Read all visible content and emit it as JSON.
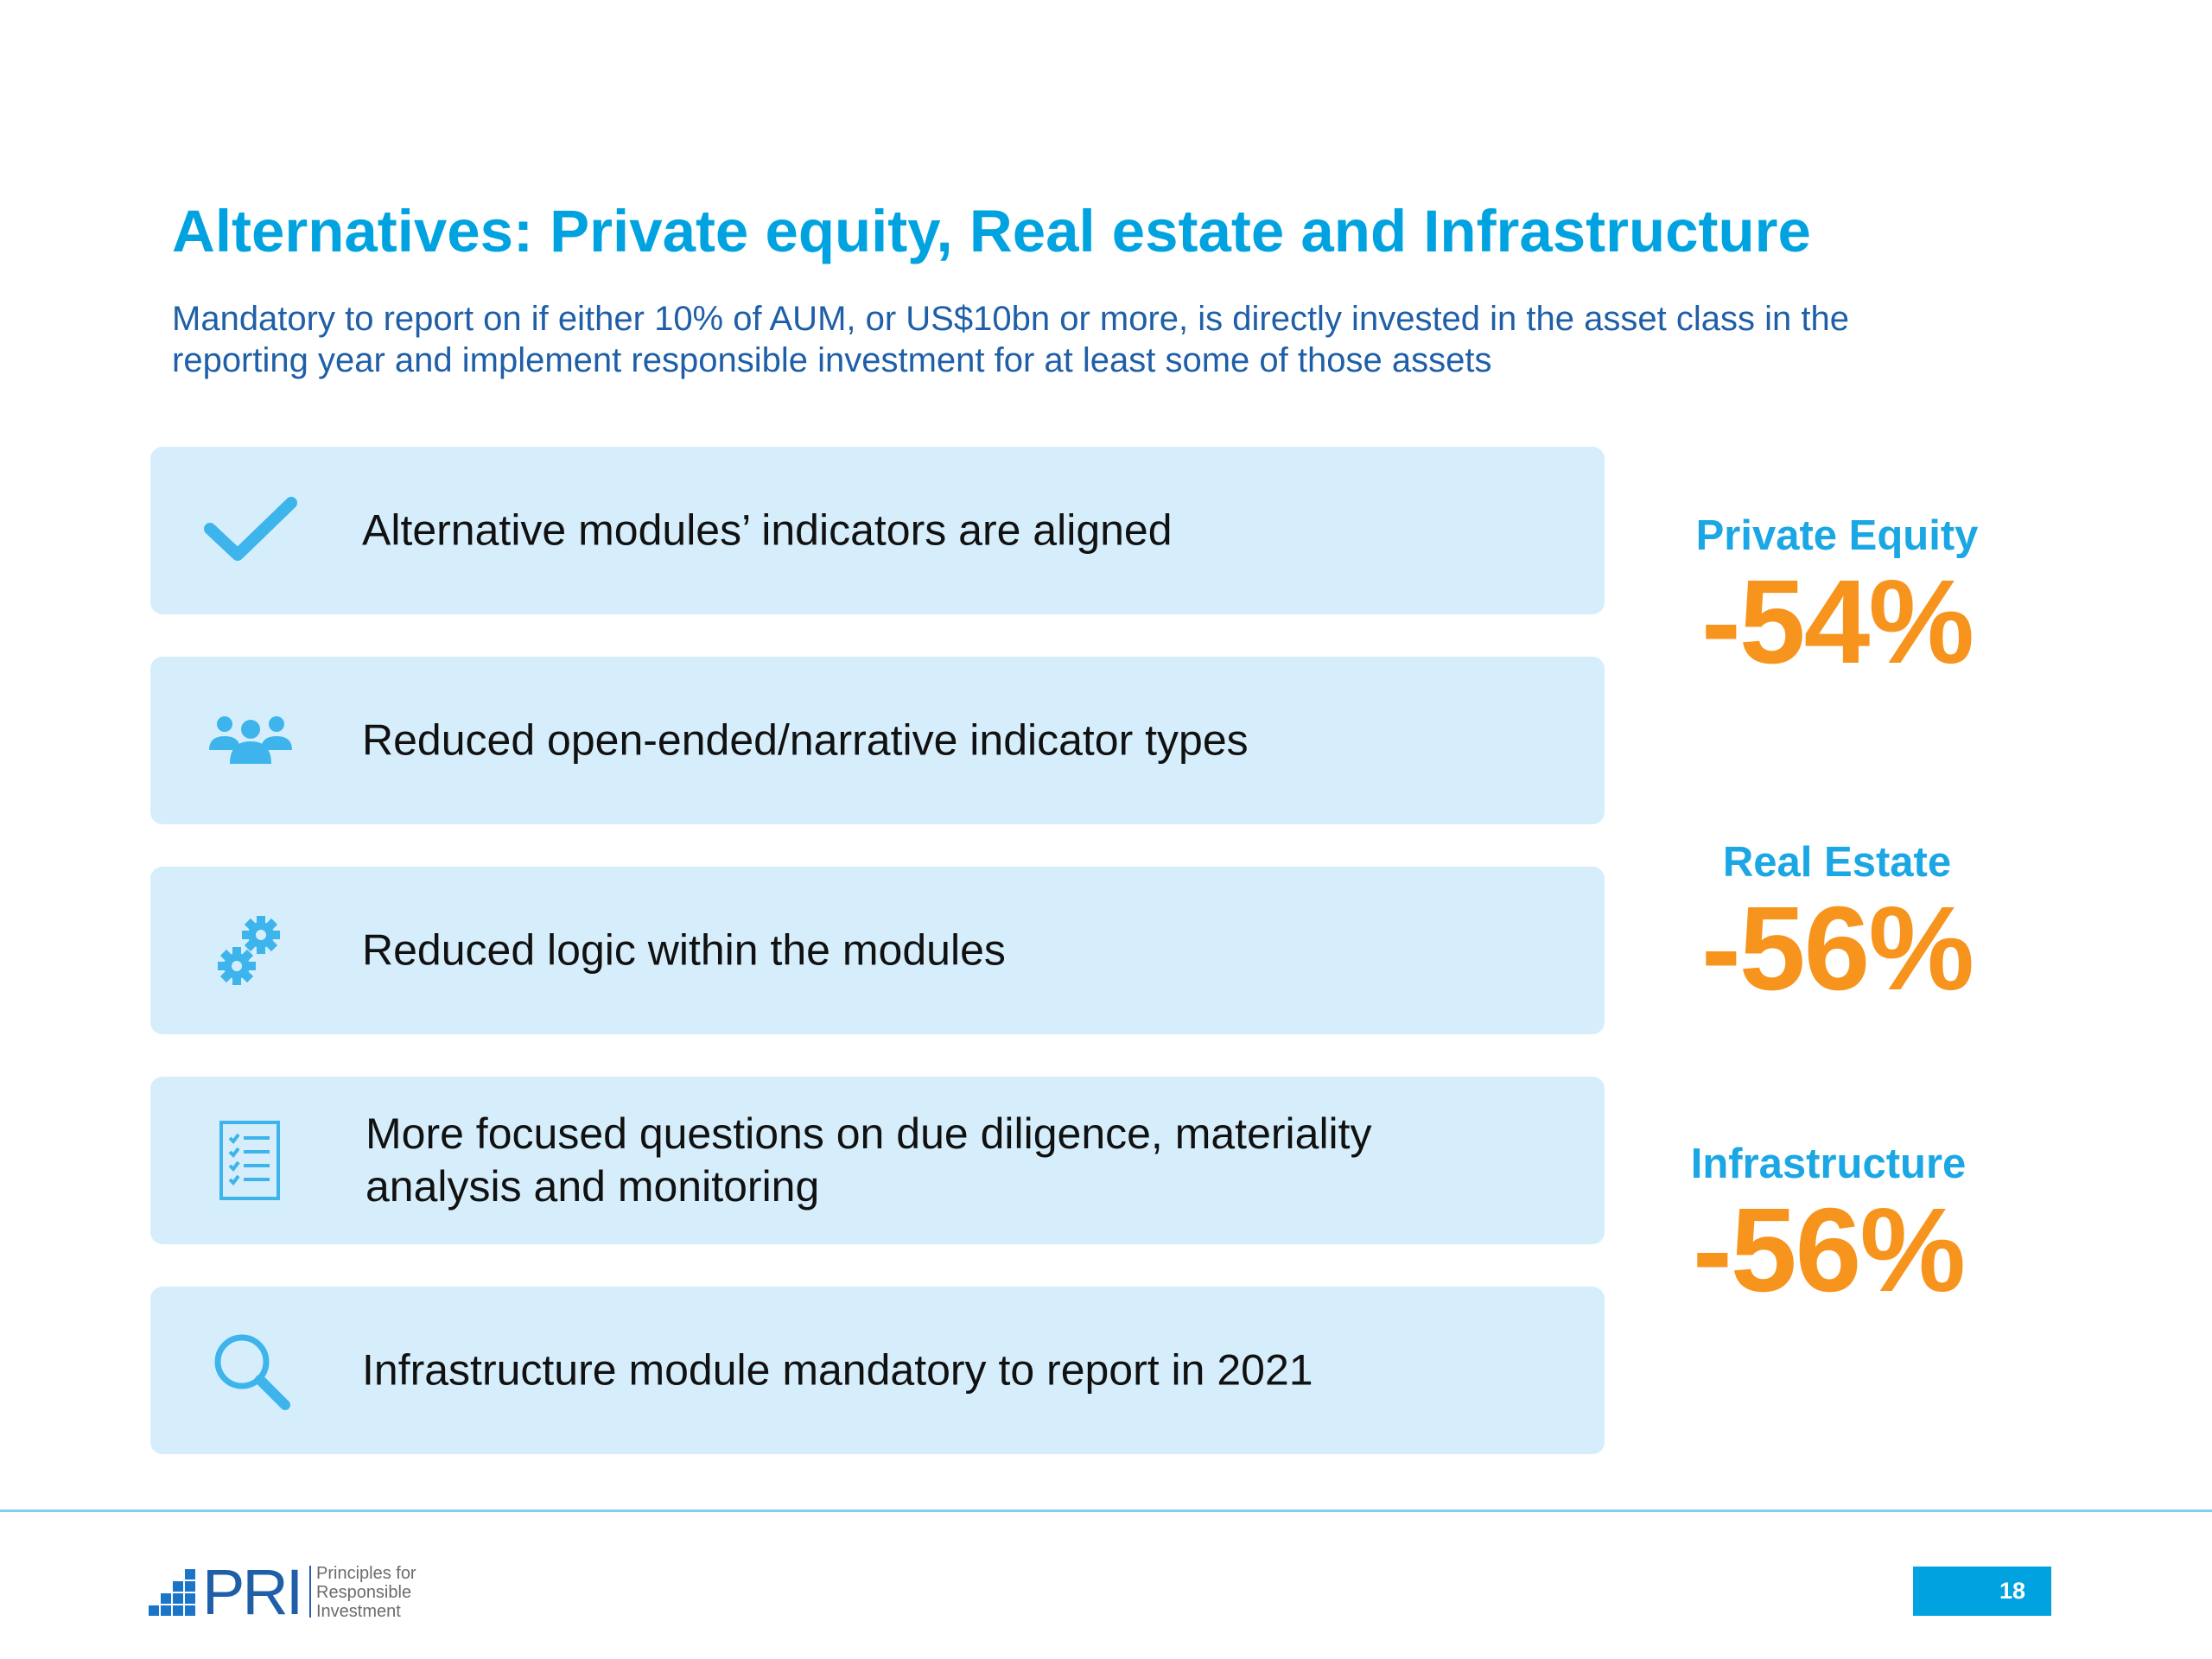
{
  "slide": {
    "title": "Alternatives: Private equity, Real estate and Infrastructure",
    "subtitle_lines": [
      "Mandatory to report on if either 10% of AUM, or US$10bn or more, is directly invested in the asset class in the",
      "reporting year and implement responsible investment for at least some of those assets"
    ]
  },
  "items": [
    {
      "icon": "checkmark-icon",
      "lines": [
        "Alternative modules’ indicators are aligned"
      ]
    },
    {
      "icon": "people-group-icon",
      "lines": [
        "Reduced open-ended/narrative indicator types"
      ]
    },
    {
      "icon": "gears-icon",
      "lines": [
        "Reduced logic within the modules"
      ]
    },
    {
      "icon": "checklist-icon",
      "lines": [
        "More focused questions on due diligence, materiality",
        "analysis and monitoring"
      ]
    },
    {
      "icon": "magnifier-icon",
      "lines": [
        "Infrastructure module mandatory to report in 2021"
      ]
    }
  ],
  "stats": [
    {
      "label": "Private Equity",
      "value": "-54%"
    },
    {
      "label": "Real Estate",
      "value": "-56%"
    },
    {
      "label": "Infrastructure",
      "value": "-56%"
    }
  ],
  "footer": {
    "logo_text": "PRI",
    "logo_tagline": [
      "Principles for",
      "Responsible",
      "Investment"
    ],
    "page_number": "18"
  },
  "colors": {
    "title": "#00A3E0",
    "subtitle": "#1F5FA8",
    "box_bg": "#D6EEFB",
    "icon": "#3DB4EC",
    "stat_label": "#1AA7E3",
    "stat_value": "#F7941D"
  }
}
